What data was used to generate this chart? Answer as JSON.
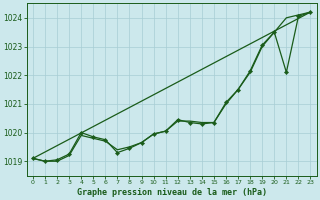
{
  "title": "Graphe pression niveau de la mer (hPa)",
  "bg_color": "#cce8ec",
  "grid_color": "#a8cdd4",
  "line_color": "#1a5c1a",
  "xlim": [
    -0.5,
    23.5
  ],
  "ylim": [
    1018.5,
    1024.5
  ],
  "yticks": [
    1019,
    1020,
    1021,
    1022,
    1023,
    1024
  ],
  "xticks": [
    0,
    1,
    2,
    3,
    4,
    5,
    6,
    7,
    8,
    9,
    10,
    11,
    12,
    13,
    14,
    15,
    16,
    17,
    18,
    19,
    20,
    21,
    22,
    23
  ],
  "straight_line": [
    [
      0,
      1019.1
    ],
    [
      23,
      1024.2
    ]
  ],
  "smooth_line": [
    1019.1,
    1019.0,
    1019.0,
    1019.2,
    1019.9,
    1019.8,
    1019.7,
    1019.4,
    1019.5,
    1019.65,
    1019.95,
    1020.05,
    1020.4,
    1020.4,
    1020.35,
    1020.35,
    1021.0,
    1021.5,
    1022.1,
    1023.0,
    1023.5,
    1024.0,
    1024.1,
    1024.2
  ],
  "marker_line": [
    1019.1,
    1019.0,
    1019.05,
    1019.25,
    1020.0,
    1019.85,
    1019.75,
    1019.3,
    1019.45,
    1019.65,
    1019.95,
    1020.05,
    1020.45,
    1020.35,
    1020.3,
    1020.35,
    1021.05,
    1021.5,
    1022.15,
    1023.05,
    1023.5,
    1022.1,
    1024.05,
    1024.2
  ]
}
